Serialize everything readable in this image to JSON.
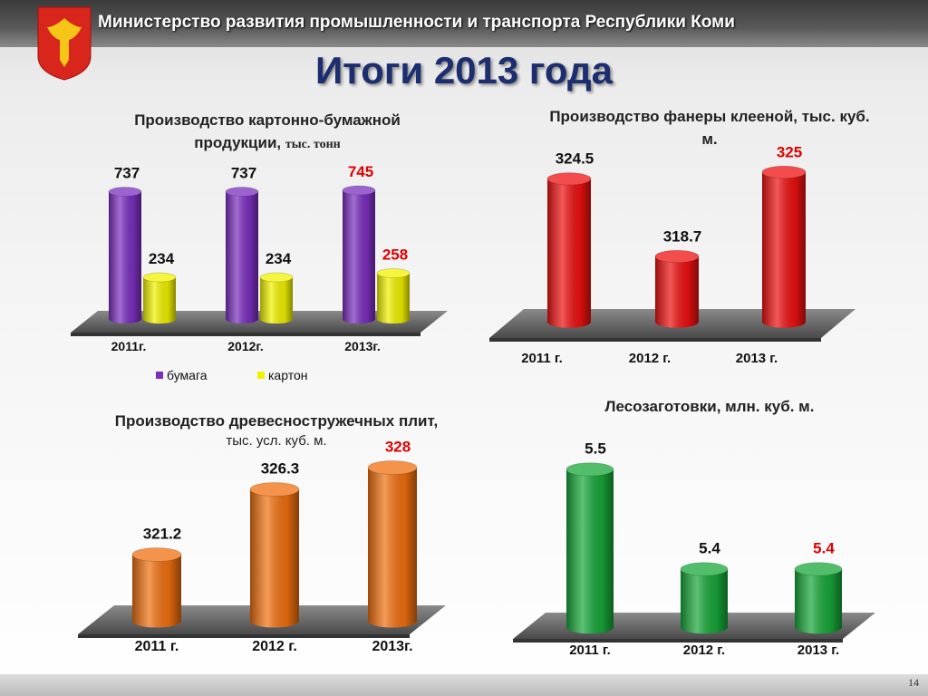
{
  "header": {
    "ministry": "Министерство развития промышленности и транспорта Республики Коми",
    "title": "Итоги 2013 года",
    "page": "14"
  },
  "chart_data": [
    {
      "type": "bar",
      "title": "Производство картонно-бумажной продукции,",
      "subtitle": "тыс. тонн",
      "categories": [
        "2011г.",
        "2012г.",
        "2013г."
      ],
      "series": [
        {
          "name": "бумага",
          "color": "#7b2fbf",
          "values": [
            737,
            737,
            745
          ]
        },
        {
          "name": "картон",
          "color": "#f2f200",
          "values": [
            234,
            234,
            258
          ]
        }
      ],
      "highlight_color": "#e00000",
      "legend": "bottom"
    },
    {
      "type": "bar",
      "title": "Производство фанеры клееной, тыс. куб. м.",
      "categories": [
        "2011 г.",
        "2012 г.",
        "2013 г."
      ],
      "values": [
        324.5,
        318.7,
        325
      ],
      "color": "#ee1111",
      "highlight_color": "#e00000"
    },
    {
      "type": "bar",
      "title": "Производство древесностружечных плит,",
      "subtitle": "тыс. усл. куб. м.",
      "categories": [
        "2011 г.",
        "2012 г.",
        "2013г."
      ],
      "values": [
        321.2,
        326.3,
        328
      ],
      "color": "#f07010",
      "highlight_color": "#e00000"
    },
    {
      "type": "bar",
      "title": "Лесозаготовки, млн. куб. м.",
      "categories": [
        "2011 г.",
        "2012 г.",
        "2013 г."
      ],
      "values": [
        5.5,
        5.4,
        5.4
      ],
      "color": "#18a83a",
      "highlight_color": "#e00000"
    }
  ]
}
